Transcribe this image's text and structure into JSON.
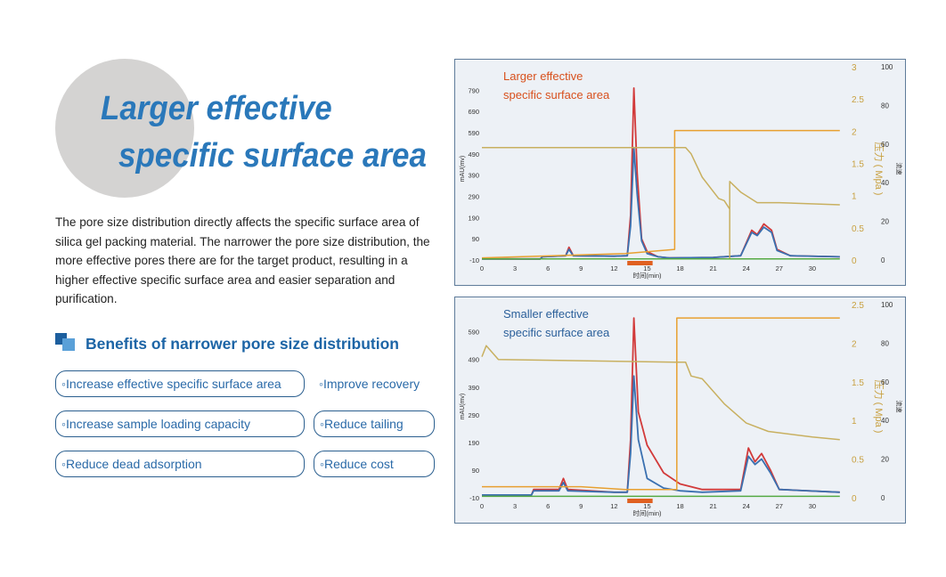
{
  "heading": {
    "line1": "Larger effective",
    "line2": "specific surface area"
  },
  "description": "The pore size distribution directly affects the specific surface area of silica gel packing material. The narrower the pore size distribution, the more effective pores there are for the target product, resulting in a higher effective specific surface area and easier separation and purification.",
  "benefits": {
    "title": "Benefits of narrower pore size distribution",
    "items": [
      "◦Increase effective specific surface area",
      "◦Improve recovery",
      "◦Increase sample loading capacity",
      "◦Reduce tailing",
      "◦Reduce dead adsorption",
      "◦Reduce cost"
    ]
  },
  "colors": {
    "accent": "#2a78ba",
    "red_line": "#d23a3a",
    "blue_line": "#3a70b0",
    "orange_line": "#e8a030",
    "khaki_line": "#c8b060",
    "green_line": "#55aa44",
    "annotation_red": "#d8501c",
    "annotation_blue": "#2a5f9a"
  },
  "chart_data": [
    {
      "type": "line",
      "annotation": [
        "Larger effective",
        "specific surface area"
      ],
      "xlabel": "时间(min)",
      "ylabel": "mAU(mv)",
      "y2label": "压力 ( Mpa )",
      "y3label": "流速",
      "xlim": [
        0,
        33
      ],
      "ylim": [
        -10,
        850
      ],
      "x_ticks": [
        0,
        3,
        6,
        9,
        12,
        15,
        18,
        21,
        24,
        27,
        30
      ],
      "y_ticks": [
        -10,
        90,
        190,
        290,
        390,
        490,
        590,
        690,
        790
      ],
      "y2_ticks": [
        "0",
        "0.5",
        "1",
        "1.5",
        "2",
        "2.5",
        "3"
      ],
      "y3_ticks": [
        "0",
        "20",
        "40",
        "60",
        "80",
        "100"
      ],
      "series": [
        {
          "color": "red",
          "points": [
            [
              0,
              -5
            ],
            [
              5.3,
              -5
            ],
            [
              5.5,
              5
            ],
            [
              7.6,
              10
            ],
            [
              7.9,
              50
            ],
            [
              8.3,
              10
            ],
            [
              12,
              8
            ],
            [
              13.2,
              10
            ],
            [
              13.5,
              200
            ],
            [
              13.8,
              800
            ],
            [
              14.1,
              400
            ],
            [
              14.5,
              90
            ],
            [
              15,
              30
            ],
            [
              16,
              5
            ],
            [
              17,
              0
            ],
            [
              21,
              2
            ],
            [
              23.5,
              10
            ],
            [
              24.5,
              130
            ],
            [
              25,
              110
            ],
            [
              25.6,
              160
            ],
            [
              26.3,
              130
            ],
            [
              26.8,
              40
            ],
            [
              28,
              10
            ],
            [
              32.5,
              5
            ]
          ]
        },
        {
          "color": "blue",
          "points": [
            [
              0,
              -5
            ],
            [
              5.3,
              -5
            ],
            [
              5.5,
              5
            ],
            [
              7.6,
              10
            ],
            [
              7.9,
              40
            ],
            [
              8.3,
              10
            ],
            [
              12,
              8
            ],
            [
              13.2,
              10
            ],
            [
              13.5,
              150
            ],
            [
              13.8,
              520
            ],
            [
              14.1,
              300
            ],
            [
              14.5,
              80
            ],
            [
              15,
              20
            ],
            [
              16,
              5
            ],
            [
              17,
              0
            ],
            [
              21,
              2
            ],
            [
              23.5,
              10
            ],
            [
              24.5,
              120
            ],
            [
              25,
              105
            ],
            [
              25.6,
              145
            ],
            [
              26.3,
              120
            ],
            [
              26.8,
              35
            ],
            [
              28,
              10
            ],
            [
              32.5,
              5
            ]
          ]
        },
        {
          "color": "orange",
          "points": [
            [
              0,
              0
            ],
            [
              13,
              20
            ],
            [
              17.5,
              40
            ],
            [
              17.5,
              600
            ],
            [
              32.5,
              600
            ]
          ]
        },
        {
          "color": "khaki",
          "points": [
            [
              0,
              520
            ],
            [
              18.5,
              520
            ],
            [
              19,
              490
            ],
            [
              20,
              380
            ],
            [
              21.5,
              280
            ],
            [
              22,
              270
            ],
            [
              22.5,
              230
            ],
            [
              22.5,
              -5
            ],
            [
              22.5,
              360
            ],
            [
              23.5,
              310
            ],
            [
              25,
              260
            ],
            [
              27,
              260
            ],
            [
              32.5,
              250
            ]
          ]
        },
        {
          "color": "green",
          "points": [
            [
              0,
              -5
            ],
            [
              32.5,
              -5
            ]
          ]
        }
      ]
    },
    {
      "type": "line",
      "annotation": [
        "Smaller effective",
        "specific surface area"
      ],
      "xlabel": "时间(min)",
      "ylabel": "mAU(mv)",
      "y2label": "压力 ( Mpa )",
      "y3label": "流速",
      "xlim": [
        0,
        33
      ],
      "ylim": [
        -10,
        650
      ],
      "x_ticks": [
        0,
        3,
        6,
        9,
        12,
        15,
        18,
        21,
        24,
        27,
        30
      ],
      "y_ticks": [
        -10,
        90,
        190,
        290,
        390,
        490,
        590
      ],
      "y2_ticks": [
        "0",
        "0.5",
        "1",
        "1.5",
        "2",
        "2.5"
      ],
      "y3_ticks": [
        "0",
        "20",
        "40",
        "60",
        "80",
        "100"
      ],
      "series": [
        {
          "color": "red",
          "points": [
            [
              0,
              0
            ],
            [
              4.5,
              0
            ],
            [
              4.7,
              20
            ],
            [
              7,
              20
            ],
            [
              7.4,
              60
            ],
            [
              7.8,
              20
            ],
            [
              12,
              10
            ],
            [
              13.2,
              10
            ],
            [
              13.5,
              200
            ],
            [
              13.8,
              640
            ],
            [
              14.2,
              300
            ],
            [
              15,
              180
            ],
            [
              16.5,
              80
            ],
            [
              18,
              40
            ],
            [
              20,
              20
            ],
            [
              23.5,
              20
            ],
            [
              24.2,
              170
            ],
            [
              24.8,
              120
            ],
            [
              25.4,
              150
            ],
            [
              26.2,
              90
            ],
            [
              27,
              20
            ],
            [
              32.5,
              10
            ]
          ]
        },
        {
          "color": "blue",
          "points": [
            [
              0,
              0
            ],
            [
              4.5,
              0
            ],
            [
              4.7,
              15
            ],
            [
              7,
              15
            ],
            [
              7.4,
              45
            ],
            [
              7.8,
              15
            ],
            [
              12,
              10
            ],
            [
              13.2,
              10
            ],
            [
              13.5,
              150
            ],
            [
              13.8,
              430
            ],
            [
              14.2,
              200
            ],
            [
              15,
              60
            ],
            [
              16.5,
              25
            ],
            [
              18,
              15
            ],
            [
              20,
              10
            ],
            [
              23.5,
              15
            ],
            [
              24.2,
              140
            ],
            [
              24.8,
              110
            ],
            [
              25.4,
              130
            ],
            [
              26.2,
              80
            ],
            [
              27,
              20
            ],
            [
              32.5,
              10
            ]
          ]
        },
        {
          "color": "orange",
          "points": [
            [
              0,
              30
            ],
            [
              9,
              30
            ],
            [
              13,
              20
            ],
            [
              17.7,
              20
            ],
            [
              17.7,
              640
            ],
            [
              32.5,
              640
            ]
          ]
        },
        {
          "color": "khaki",
          "points": [
            [
              0,
              500
            ],
            [
              0.4,
              540
            ],
            [
              1.5,
              490
            ],
            [
              17.5,
              480
            ],
            [
              18.5,
              480
            ],
            [
              19,
              430
            ],
            [
              20,
              420
            ],
            [
              22,
              330
            ],
            [
              24,
              260
            ],
            [
              26,
              230
            ],
            [
              30,
              210
            ],
            [
              32.5,
              200
            ]
          ]
        },
        {
          "color": "green",
          "points": [
            [
              0,
              -5
            ],
            [
              32.5,
              -5
            ]
          ]
        }
      ]
    }
  ]
}
